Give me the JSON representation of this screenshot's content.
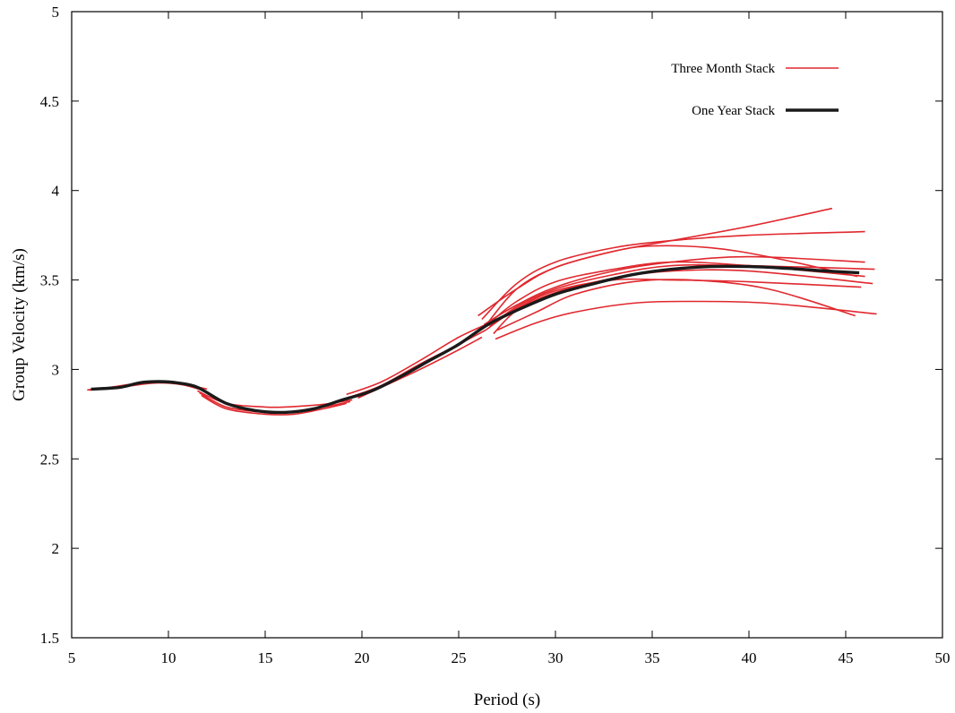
{
  "chart_data": {
    "type": "line",
    "title": "",
    "xlabel": "Period (s)",
    "ylabel": "Group Velocity (km/s)",
    "xlim": [
      5,
      50
    ],
    "ylim": [
      1.5,
      5
    ],
    "xticks": [
      5,
      10,
      15,
      20,
      25,
      30,
      35,
      40,
      45,
      50
    ],
    "yticks": [
      1.5,
      2,
      2.5,
      3,
      3.5,
      4,
      4.5,
      5
    ],
    "xtick_labels": [
      "5",
      "10",
      "15",
      "20",
      "25",
      "30",
      "35",
      "40",
      "45",
      "50"
    ],
    "ytick_labels": [
      "1.5",
      "2",
      "2.5",
      "3",
      "3.5",
      "4",
      "4.5",
      "5"
    ],
    "grid": false,
    "legend_position": "top-right",
    "legend": [
      {
        "label": "Three Month Stack",
        "color": "#e0282e"
      },
      {
        "label": "One Year Stack",
        "color": "#1a1a1a"
      }
    ],
    "series_groups": [
      {
        "name": "Three Month Stack",
        "color": "#e0282e",
        "line_width": 1.6,
        "curves": [
          {
            "x": [
              5.8,
              7.0,
              8.5,
              9.5,
              10.5,
              12.0
            ],
            "y": [
              2.885,
              2.9,
              2.925,
              2.935,
              2.925,
              2.89
            ]
          },
          {
            "x": [
              5.9,
              7.2,
              8.5,
              9.5,
              10.7,
              11.9
            ],
            "y": [
              2.885,
              2.895,
              2.915,
              2.925,
              2.915,
              2.88
            ]
          },
          {
            "x": [
              11.5,
              13,
              15,
              16,
              18,
              19.5
            ],
            "y": [
              2.88,
              2.81,
              2.79,
              2.79,
              2.805,
              2.83
            ]
          },
          {
            "x": [
              11.6,
              13,
              15,
              16,
              18,
              19.4
            ],
            "y": [
              2.87,
              2.79,
              2.76,
              2.76,
              2.79,
              2.82
            ]
          },
          {
            "x": [
              11.7,
              13,
              15,
              16.5,
              18,
              19.2
            ],
            "y": [
              2.855,
              2.78,
              2.75,
              2.75,
              2.78,
              2.81
            ]
          },
          {
            "x": [
              19.2,
              21,
              23,
              25,
              26.6
            ],
            "y": [
              2.86,
              2.93,
              3.05,
              3.18,
              3.26
            ]
          },
          {
            "x": [
              19.5,
              21,
              23,
              25,
              26.4
            ],
            "y": [
              2.85,
              2.91,
              3.03,
              3.14,
              3.22
            ]
          },
          {
            "x": [
              19.8,
              21,
              23,
              25,
              26.2
            ],
            "y": [
              2.84,
              2.9,
              3.0,
              3.11,
              3.18
            ]
          },
          {
            "x": [
              26.0,
              28,
              30,
              33,
              36,
              40,
              44.3
            ],
            "y": [
              3.3,
              3.45,
              3.57,
              3.66,
              3.72,
              3.8,
              3.9
            ]
          },
          {
            "x": [
              26.2,
              28,
              30,
              33,
              36,
              40,
              46.0
            ],
            "y": [
              3.28,
              3.48,
              3.6,
              3.68,
              3.72,
              3.75,
              3.77
            ]
          },
          {
            "x": [
              26.5,
              28,
              30,
              33,
              35,
              38,
              41,
              45.6
            ],
            "y": [
              3.26,
              3.45,
              3.57,
              3.66,
              3.69,
              3.68,
              3.63,
              3.52
            ]
          },
          {
            "x": [
              26.3,
              28,
              30,
              33,
              36,
              40,
              46.0
            ],
            "y": [
              3.25,
              3.36,
              3.46,
              3.55,
              3.6,
              3.63,
              3.6
            ]
          },
          {
            "x": [
              26.6,
              28,
              30,
              33,
              36,
              40,
              46.5
            ],
            "y": [
              3.24,
              3.35,
              3.45,
              3.53,
              3.58,
              3.58,
              3.56
            ]
          },
          {
            "x": [
              26.8,
              28,
              30,
              33,
              36,
              40,
              46.4
            ],
            "y": [
              3.2,
              3.33,
              3.43,
              3.51,
              3.55,
              3.55,
              3.48
            ]
          },
          {
            "x": [
              26.4,
              28,
              30,
              33,
              36,
              40,
              45.8
            ],
            "y": [
              3.22,
              3.34,
              3.44,
              3.5,
              3.5,
              3.49,
              3.46
            ]
          },
          {
            "x": [
              27.0,
              29,
              31,
              34,
              37,
              41,
              45.5
            ],
            "y": [
              3.22,
              3.32,
              3.42,
              3.49,
              3.5,
              3.45,
              3.3
            ]
          },
          {
            "x": [
              26.9,
              29,
              31,
              34,
              37,
              41,
              46.6
            ],
            "y": [
              3.17,
              3.26,
              3.32,
              3.37,
              3.38,
              3.37,
              3.31
            ]
          },
          {
            "x": [
              26.7,
              28,
              30,
              33,
              36,
              40,
              46.0
            ],
            "y": [
              3.27,
              3.38,
              3.49,
              3.56,
              3.6,
              3.58,
              3.52
            ]
          }
        ]
      },
      {
        "name": "One Year Stack",
        "color": "#1a1a1a",
        "line_width": 3.4,
        "curves": [
          {
            "x": [
              6.0,
              7.5,
              8.5,
              9.5,
              10.5,
              11.5,
              13,
              14.5,
              16,
              17.5,
              19,
              20.5,
              22,
              23.5,
              25,
              26.5,
              28,
              30,
              32,
              34,
              36,
              38,
              40,
              42,
              44,
              45.7
            ],
            "y": [
              2.89,
              2.9,
              2.925,
              2.932,
              2.924,
              2.9,
              2.81,
              2.77,
              2.76,
              2.78,
              2.83,
              2.88,
              2.96,
              3.05,
              3.14,
              3.25,
              3.33,
              3.42,
              3.48,
              3.53,
              3.56,
              3.575,
              3.575,
              3.565,
              3.55,
              3.54
            ]
          }
        ]
      }
    ]
  }
}
